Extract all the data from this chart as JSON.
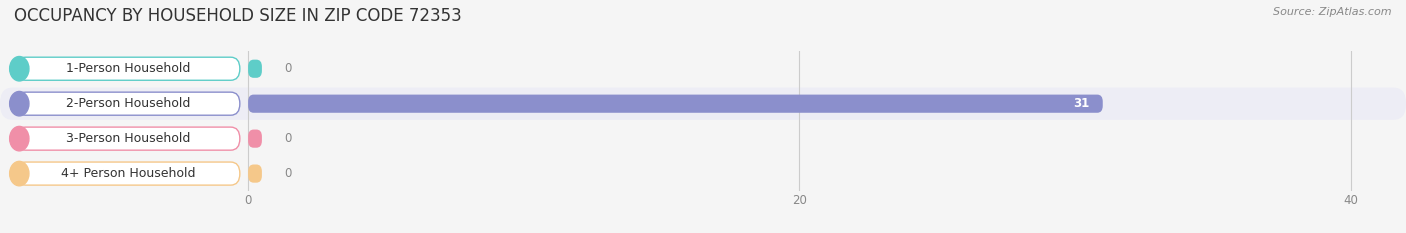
{
  "title": "OCCUPANCY BY HOUSEHOLD SIZE IN ZIP CODE 72353",
  "source": "Source: ZipAtlas.com",
  "categories": [
    "1-Person Household",
    "2-Person Household",
    "3-Person Household",
    "4+ Person Household"
  ],
  "values": [
    0,
    31,
    0,
    0
  ],
  "bar_colors": [
    "#5ecdc8",
    "#8b8fcc",
    "#f08fa8",
    "#f5c88a"
  ],
  "label_bg_colors": [
    "#f0fafa",
    "#f0f0fa",
    "#fdf0f5",
    "#fef8ee"
  ],
  "label_border_colors": [
    "#5ecdc8",
    "#8b8fcc",
    "#f08fa8",
    "#f5c88a"
  ],
  "row_bg_even": "#ededf5",
  "row_bg_odd": "#f5f5f5",
  "fig_bg": "#f5f5f5",
  "xlim": [
    -9,
    42
  ],
  "xlim_display": [
    0,
    42
  ],
  "xticks": [
    0,
    20,
    40
  ],
  "title_fontsize": 12,
  "label_fontsize": 9,
  "bar_height": 0.52,
  "value_fontsize": 8.5,
  "source_fontsize": 8
}
